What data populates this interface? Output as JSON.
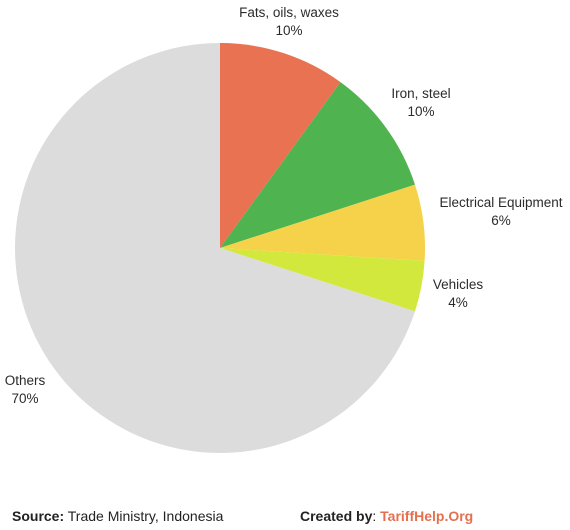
{
  "chart_data": {
    "type": "pie",
    "slices": [
      {
        "label": "Fats, oils, waxes",
        "value": 10,
        "value_label": "10%",
        "color": "#e87252"
      },
      {
        "label": "Iron, steel",
        "value": 10,
        "value_label": "10%",
        "color": "#4fb34f"
      },
      {
        "label": "Electrical Equipment",
        "value": 6,
        "value_label": "6%",
        "color": "#f6d24a"
      },
      {
        "label": "Vehicles",
        "value": 4,
        "value_label": "4%",
        "color": "#d3e83d"
      },
      {
        "label": "Others",
        "value": 70,
        "value_label": "70%",
        "color": "#dcdcdc"
      }
    ]
  },
  "footer": {
    "source_label": "Source:",
    "source_text": "Trade Ministry, Indonesia",
    "created_label": "Created by",
    "created_sep": ":",
    "created_brand": "TariffHelp.Org"
  }
}
